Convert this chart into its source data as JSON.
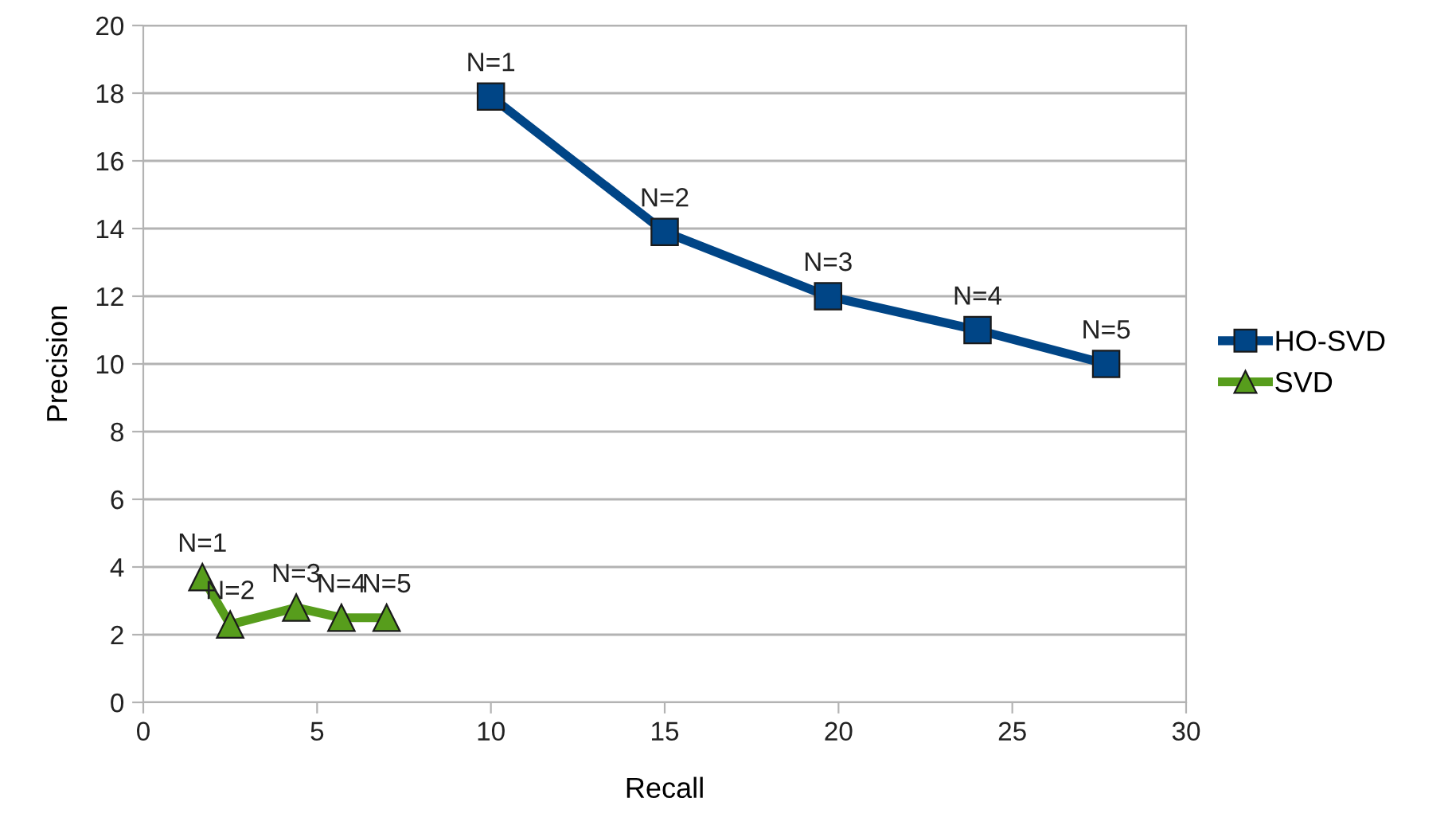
{
  "chart_data": {
    "type": "line",
    "xlabel": "Recall",
    "ylabel": "Precision",
    "xlim": [
      0,
      30
    ],
    "xticks": [
      0,
      5,
      10,
      15,
      20,
      25,
      30
    ],
    "ylim": [
      0,
      20
    ],
    "yticks": [
      0,
      2,
      4,
      6,
      8,
      10,
      12,
      14,
      16,
      18,
      20
    ],
    "grid": "y",
    "legend": "right",
    "series": [
      {
        "name": "HO-SVD",
        "color": "#004586",
        "marker": "square",
        "x": [
          10.0,
          15.0,
          19.7,
          24.0,
          27.7
        ],
        "values": [
          17.9,
          13.9,
          12.0,
          11.0,
          10.0
        ]
      },
      {
        "name": "SVD",
        "color": "#579d1c",
        "marker": "triangle",
        "x": [
          1.7,
          2.5,
          4.4,
          5.7,
          7.0
        ],
        "values": [
          3.7,
          2.3,
          2.8,
          2.5,
          2.5
        ]
      }
    ],
    "annotations": [
      {
        "text": "N=1",
        "x": 10.0,
        "y": 17.9
      },
      {
        "text": "N=2",
        "x": 15.0,
        "y": 13.9
      },
      {
        "text": "N=3",
        "x": 19.7,
        "y": 12.0
      },
      {
        "text": "N=4",
        "x": 24.0,
        "y": 11.0
      },
      {
        "text": "N=5",
        "x": 27.7,
        "y": 10.0
      },
      {
        "text": "N=1",
        "x": 1.7,
        "y": 3.7
      },
      {
        "text": "N=2",
        "x": 2.5,
        "y": 2.3
      },
      {
        "text": "N=3",
        "x": 4.4,
        "y": 2.8
      },
      {
        "text": "N=4",
        "x": 5.7,
        "y": 2.5
      },
      {
        "text": "N=5",
        "x": 7.0,
        "y": 2.5
      }
    ]
  }
}
